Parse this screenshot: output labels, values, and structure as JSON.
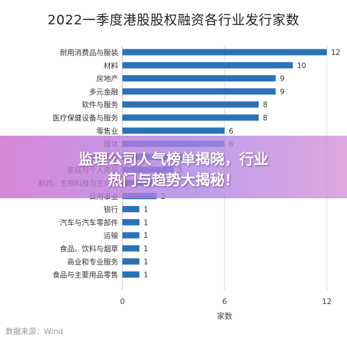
{
  "chart_data": {
    "type": "bar",
    "orientation": "horizontal",
    "title": "2022一季度港股股权融资各行业发行家数",
    "xlabel": "家数",
    "ylabel": "",
    "xlim": [
      0,
      12
    ],
    "xticks": [
      0,
      6,
      12
    ],
    "grid": true,
    "bar_color": "#2b72b8",
    "categories": [
      "耐用消费品与服装",
      "材料",
      "房地产",
      "多元金融",
      "软件与服务",
      "医疗保健设备与服务",
      "零售业",
      "媒体",
      "资本货物",
      "家庭与个人用品",
      "制药、生物科技与生命...",
      "公用事业",
      "银行",
      "汽车与汽车零部件",
      "运输",
      "食品、饮料与烟草",
      "商业和专业服务",
      "食品与主要用品零售"
    ],
    "values": [
      12,
      10,
      9,
      9,
      8,
      8,
      6,
      6,
      4,
      3,
      2,
      2,
      1,
      1,
      1,
      1,
      1,
      1
    ]
  },
  "source_text": "数据来源：Wind",
  "overlay": {
    "headline_line1": "监理公司人气榜单揭晓，行业",
    "headline_line2": "热门与趋势大揭秘！"
  }
}
